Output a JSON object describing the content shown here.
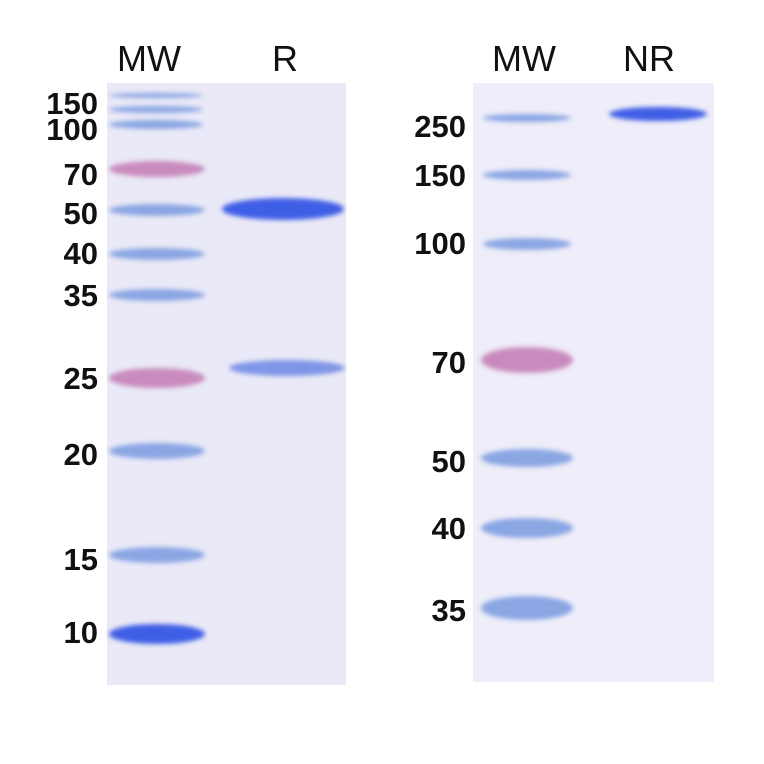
{
  "left_panel": {
    "lane_headers": [
      "MW",
      "R"
    ],
    "marker_labels": [
      "150",
      "100",
      "70",
      "50",
      "40",
      "35",
      "25",
      "20",
      "15",
      "10"
    ]
  },
  "right_panel": {
    "lane_headers": [
      "MW",
      "NR"
    ],
    "marker_labels": [
      "250",
      "150",
      "100",
      "70",
      "50",
      "40",
      "35"
    ]
  },
  "colors": {
    "gel_background": "#eae9f7",
    "marker_band": "#8aa6e3",
    "prestained_band": "#c98bbd",
    "sample_band": "#3f5ee6"
  }
}
